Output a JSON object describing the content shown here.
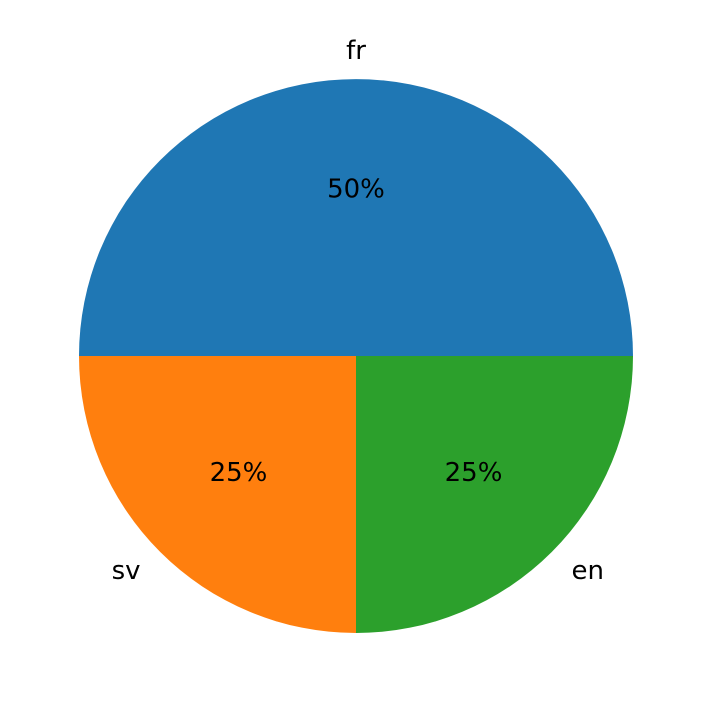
{
  "chart_data": {
    "type": "pie",
    "categories": [
      "fr",
      "sv",
      "en"
    ],
    "values": [
      50,
      25,
      25
    ],
    "value_labels": [
      "50%",
      "25%",
      "25%"
    ],
    "colors": [
      "#1f77b4",
      "#ff7f0e",
      "#2ca02c"
    ]
  }
}
